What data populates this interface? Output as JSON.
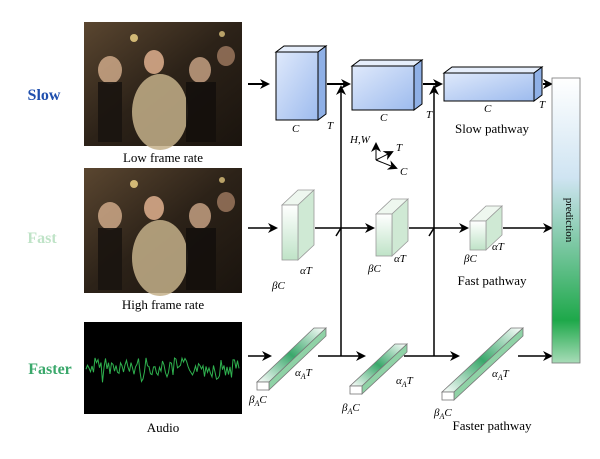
{
  "rows": {
    "slow": {
      "label": "Slow",
      "color": "#1f4fae"
    },
    "fast": {
      "label": "Fast",
      "color": "#bfe3c7"
    },
    "faster": {
      "label": "Faster",
      "color": "#3aa86b"
    }
  },
  "inputs": {
    "slow_caption": "Low frame rate",
    "fast_caption": "High frame rate",
    "audio_caption": "Audio"
  },
  "slow_path": {
    "dim_c": "C",
    "dim_t": "T",
    "pathway_label": "Slow pathway"
  },
  "fast_path": {
    "dim_bc": "βC",
    "dim_at": "αT",
    "pathway_label": "Fast pathway"
  },
  "faster_path": {
    "dim_bac": "β_A C",
    "dim_aat": "α_A T",
    "pathway_label": "Faster pathway"
  },
  "axes": {
    "hw": "H,W",
    "t": "T",
    "c": "C"
  },
  "prediction": {
    "label": "prediction",
    "color_top": "#ffffff",
    "color_bottom": "#1ea84a"
  },
  "colors": {
    "slow_block": "#c7d8f5",
    "fast_block": "#d8efd9",
    "faster_block": "#5cc17f",
    "arrow": "#000000"
  }
}
